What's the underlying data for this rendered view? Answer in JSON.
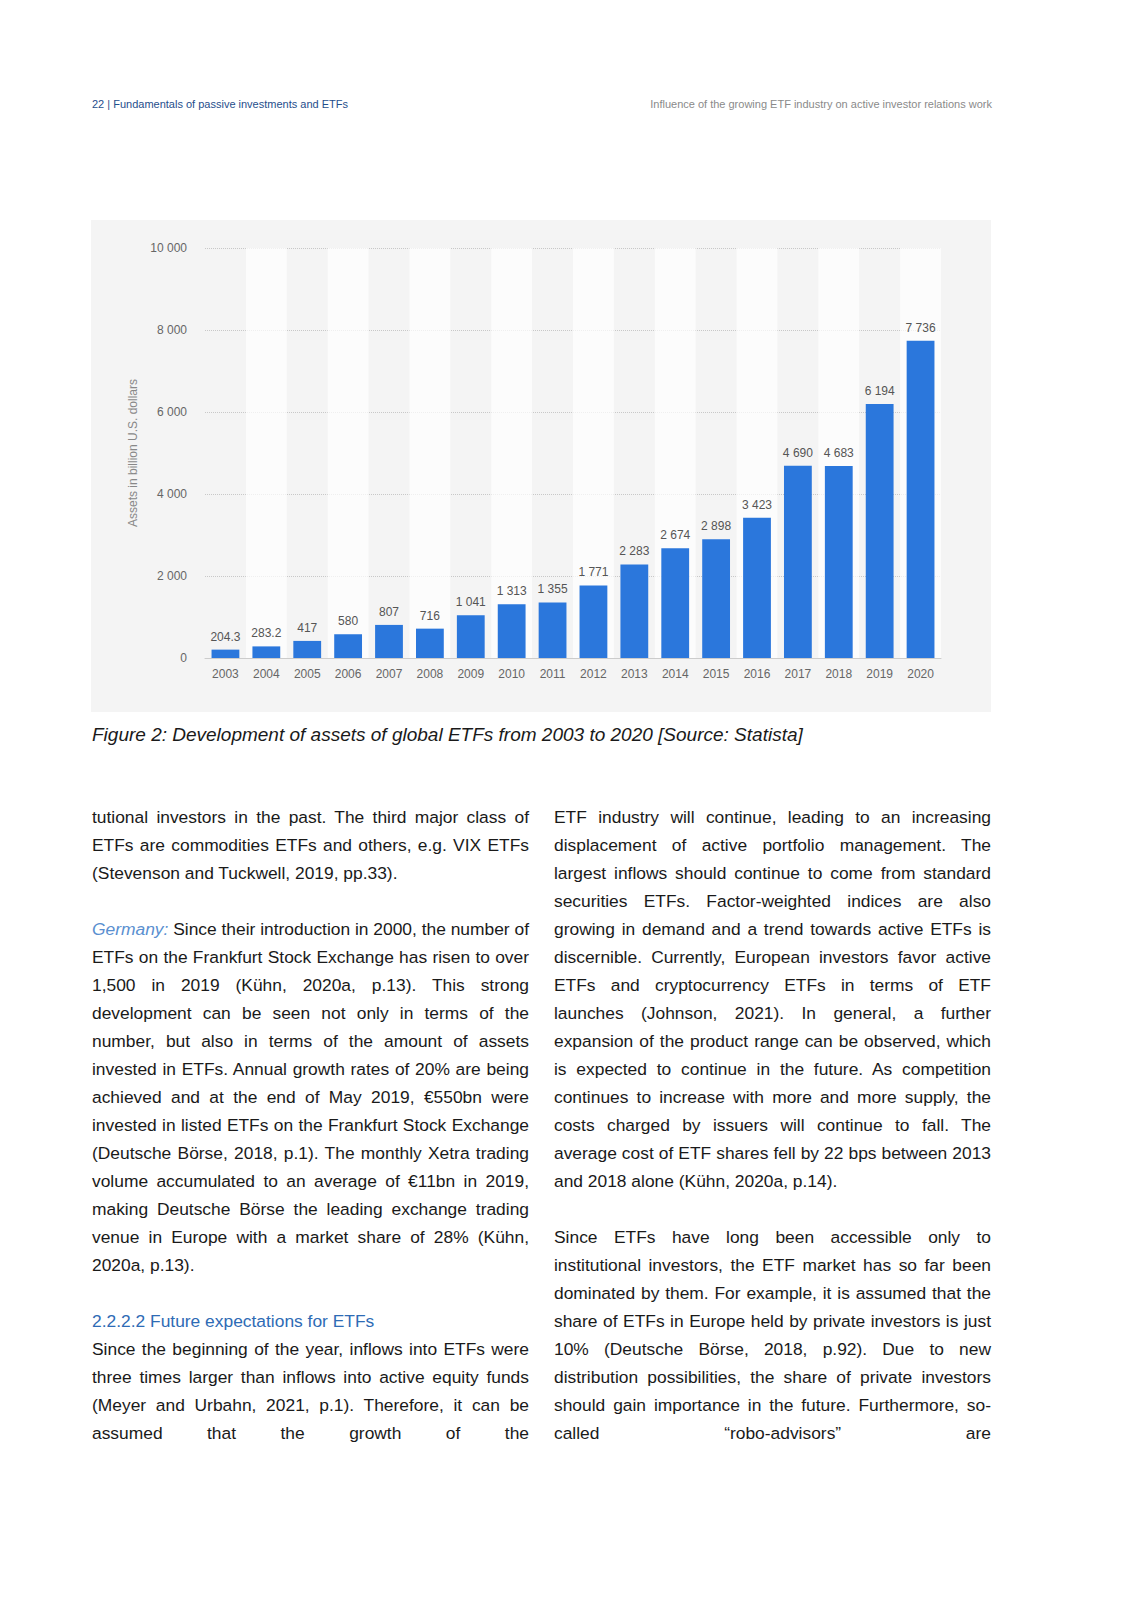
{
  "header": {
    "page": "22",
    "separator": "|",
    "section": "Fundamentals of passive investments and ETFs",
    "title": "Influence of the growing ETF industry on active investor relations work"
  },
  "chart_data": {
    "type": "bar",
    "ylabel": "Assets in billion U.S. dollars",
    "categories": [
      "2003",
      "2004",
      "2005",
      "2006",
      "2007",
      "2008",
      "2009",
      "2010",
      "2011",
      "2012",
      "2013",
      "2014",
      "2015",
      "2016",
      "2017",
      "2018",
      "2019",
      "2020"
    ],
    "values": [
      204.3,
      283.2,
      417,
      580,
      807,
      716,
      1041,
      1313,
      1355,
      1771,
      2283,
      2674,
      2898,
      3423,
      4690,
      4683,
      6194,
      7736
    ],
    "value_labels": [
      "204.3",
      "283.2",
      "417",
      "580",
      "807",
      "716",
      "1 041",
      "1 313",
      "1 355",
      "1 771",
      "2 283",
      "2 674",
      "2 898",
      "3 423",
      "4 690",
      "4 683",
      "6 194",
      "7 736"
    ],
    "color": "#2b77dc",
    "ylim": [
      0,
      10000
    ],
    "yticks": [
      0,
      {
        "value": 2000,
        "label": "2 000"
      },
      {
        "value": 4000,
        "label": "4 000"
      },
      {
        "value": 6000,
        "label": "6 000"
      },
      {
        "value": 8000,
        "label": "8 000"
      },
      {
        "value": 10000,
        "label": "10 000"
      }
    ],
    "grid": true,
    "data_labels": true
  },
  "caption": "Figure 2: Development of assets of global ETFs from 2003 to 2020 [Source: Statista]",
  "columns": [
    [
      {
        "text": "tutional investors in the past. The third major class of ETFs are commodities ETFs and others, e.g. VIX ETFs (Stevenson and Tuckwell, 2019, pp.33)."
      },
      {
        "lead": "Germany:",
        "text": " Since their introduction in 2000, the number of ETFs on the Frankfurt Stock Exchange has risen to over 1,500 in 2019 (Kühn, 2020a, p.13). This strong development can be seen not only in terms of the number, but also in terms of the amount of assets invested in ETFs. Annual growth rates of 20% are being achieved and at the end of May 2019, €550bn were invested in listed ETFs on the Frankfurt Stock Exchange (Deutsche Börse, 2018, p.1). The monthly Xetra trading volume accumulated to an average of €11bn in 2019, making Deutsche Börse the leading exchange trading venue in Europe with a market share of 28% (Kühn, 2020a, p.13)."
      },
      {
        "heading": "2.2.2.2 Future expectations for ETFs"
      },
      {
        "text": "Since the beginning of the year, inflows into ETFs were three times larger than inflows into active equity funds (Meyer and Urbahn, 2021, p.1). Therefore, it can be assumed that the growth of the",
        "continues": true
      }
    ],
    [
      {
        "text": "ETF industry will continue, leading to an increasing displacement of active portfolio management. The largest inflows should continue to come from standard securities ETFs. Factor-weighted indices are also growing in demand and a trend towards active ETFs is discernible. Currently, European investors favor active ETFs and cryptocurrency ETFs in terms of ETF launches (Johnson, 2021). In general, a further expansion of the product range can be observed, which is expected to continue in the future. As competition continues to increase with more and more supply, the costs charged by issuers will continue to fall. The average cost of ETF shares fell by 22 bps between 2013 and 2018 alone (Kühn, 2020a, p.14)."
      },
      {
        "text": "Since ETFs have long been accessible only to institutional investors, the ETF market has so far been dominated by them. For example, it is assumed that the share of ETFs in Europe held by private investors is just 10% (Deutsche Börse, 2018, p.92). Due to new distribution possibilities, the share of private investors should gain importance in the future. Furthermore, so-called “robo-advisors” are",
        "continues": true
      }
    ]
  ]
}
